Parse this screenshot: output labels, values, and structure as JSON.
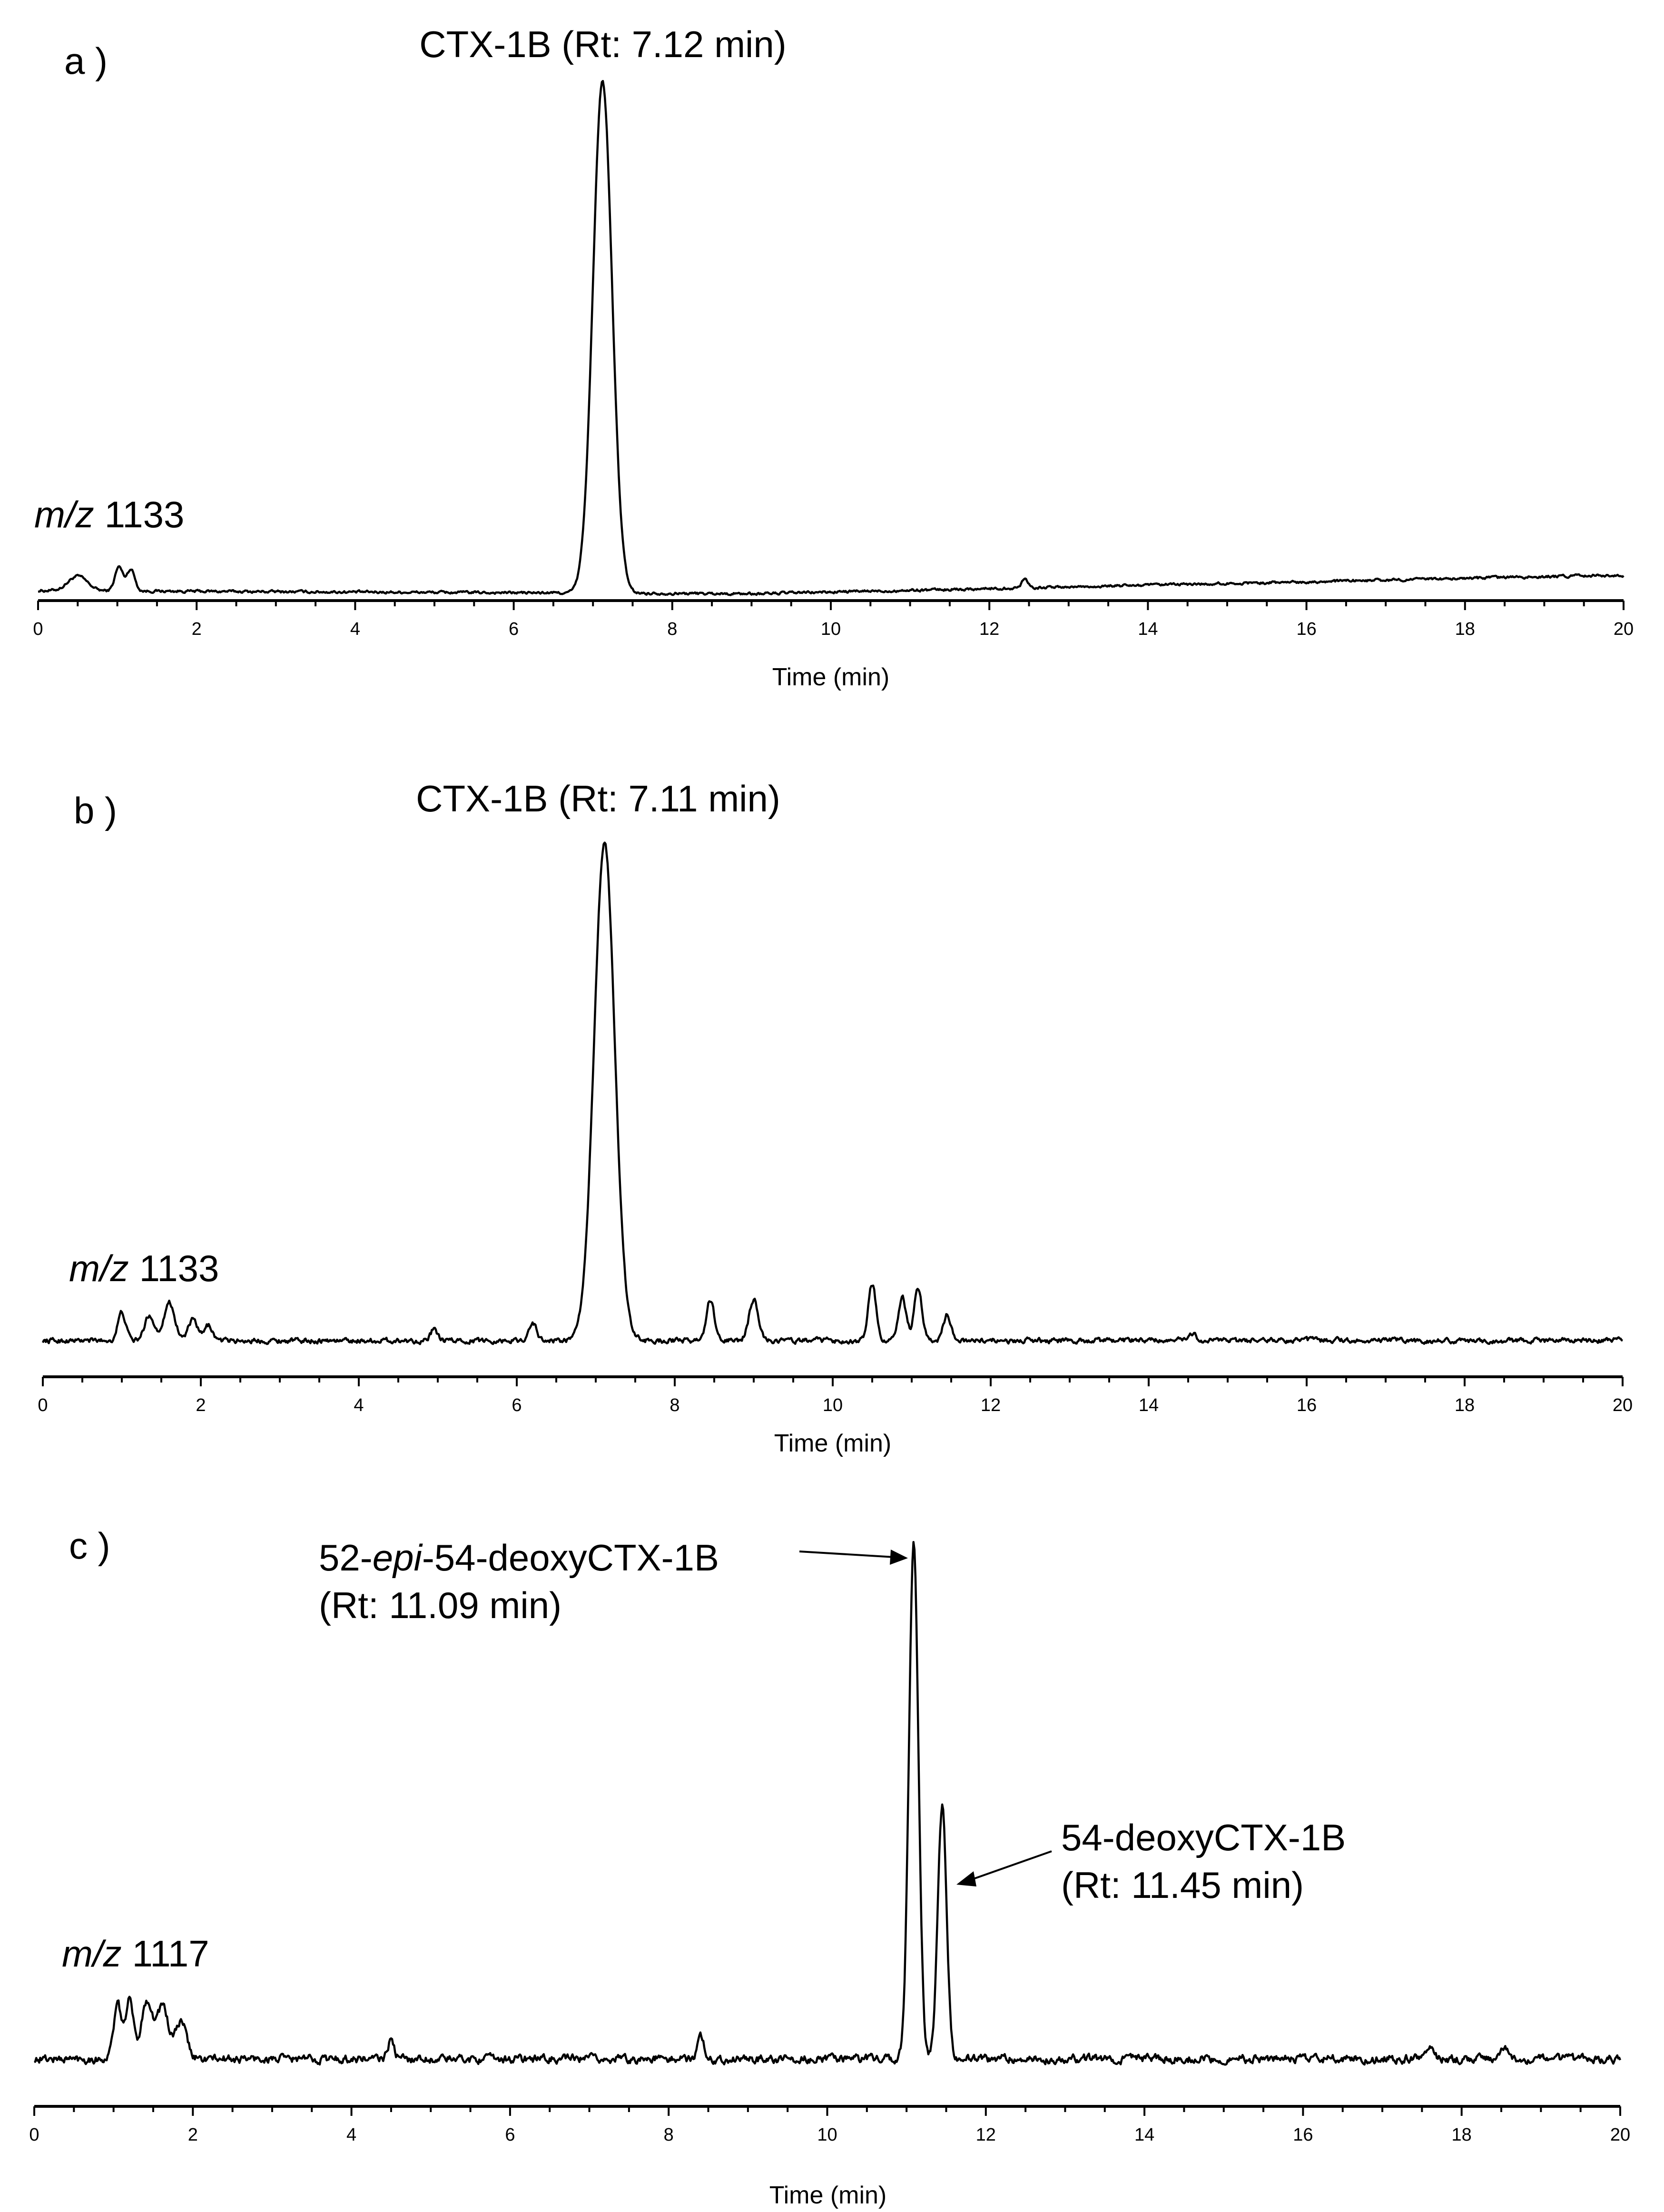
{
  "chart_data": [
    {
      "type": "line",
      "panel_label": "a )",
      "ion_label_prefix": "m/z",
      "ion_label_value": "1133",
      "xlabel": "Time (min)",
      "xlim": [
        0,
        20
      ],
      "x_ticks": [
        0,
        2,
        4,
        6,
        8,
        10,
        12,
        14,
        16,
        18,
        20
      ],
      "ylim": [
        0,
        100
      ],
      "peaks": [
        {
          "x": 0.5,
          "y": 2.8,
          "w": 0.12
        },
        {
          "x": 1.02,
          "y": 4.6,
          "w": 0.05
        },
        {
          "x": 1.17,
          "y": 4.2,
          "w": 0.05
        },
        {
          "x": 7.12,
          "y": 98,
          "w": 0.12
        },
        {
          "x": 12.45,
          "y": 1.8,
          "w": 0.04
        }
      ],
      "baseline": {
        "start": 1.0,
        "mid_x": 9.0,
        "mid_y": 0.4,
        "end": 4.0,
        "noise": 0.45
      },
      "annotations": [
        {
          "lines": [
            "CTX-1B (Rt: 7.12 min)"
          ],
          "peak_x": 7.12,
          "arrow": false
        }
      ]
    },
    {
      "type": "line",
      "panel_label": "b )",
      "ion_label_prefix": "m/z",
      "ion_label_value": "1133",
      "xlabel": "Time (min)",
      "xlim": [
        0,
        20
      ],
      "x_ticks": [
        0,
        2,
        4,
        6,
        8,
        10,
        12,
        14,
        16,
        18,
        20
      ],
      "ylim": [
        0,
        100
      ],
      "peaks": [
        {
          "x": 1.0,
          "y": 5.5,
          "w": 0.05
        },
        {
          "x": 1.35,
          "y": 5.0,
          "w": 0.06
        },
        {
          "x": 1.6,
          "y": 7.5,
          "w": 0.07
        },
        {
          "x": 1.9,
          "y": 4.0,
          "w": 0.06
        },
        {
          "x": 2.1,
          "y": 3.0,
          "w": 0.05
        },
        {
          "x": 4.95,
          "y": 2.2,
          "w": 0.04
        },
        {
          "x": 6.2,
          "y": 3.5,
          "w": 0.05
        },
        {
          "x": 7.11,
          "y": 98,
          "w": 0.13
        },
        {
          "x": 8.45,
          "y": 8.0,
          "w": 0.05
        },
        {
          "x": 9.0,
          "y": 8.0,
          "w": 0.06
        },
        {
          "x": 10.5,
          "y": 11.0,
          "w": 0.05
        },
        {
          "x": 10.88,
          "y": 8.5,
          "w": 0.05
        },
        {
          "x": 11.08,
          "y": 10.0,
          "w": 0.05
        },
        {
          "x": 11.45,
          "y": 5.0,
          "w": 0.05
        },
        {
          "x": 14.55,
          "y": 1.5,
          "w": 0.04
        }
      ],
      "baseline": {
        "start": 1.5,
        "mid_x": 10.0,
        "mid_y": 1.5,
        "end": 1.5,
        "noise": 0.9
      },
      "annotations": [
        {
          "lines": [
            "CTX-1B (Rt: 7.11 min)"
          ],
          "peak_x": 7.11,
          "arrow": false
        }
      ]
    },
    {
      "type": "line",
      "panel_label": "c )",
      "ion_label_prefix": "m/z",
      "ion_label_value": "1117",
      "xlabel": "Time (min)",
      "xlim": [
        0,
        20
      ],
      "x_ticks": [
        0,
        2,
        4,
        6,
        8,
        10,
        12,
        14,
        16,
        18,
        20
      ],
      "ylim": [
        0,
        100
      ],
      "peaks": [
        {
          "x": 1.05,
          "y": 10,
          "w": 0.05
        },
        {
          "x": 1.2,
          "y": 11,
          "w": 0.05
        },
        {
          "x": 1.42,
          "y": 11,
          "w": 0.07
        },
        {
          "x": 1.62,
          "y": 10,
          "w": 0.07
        },
        {
          "x": 1.85,
          "y": 7,
          "w": 0.07
        },
        {
          "x": 4.5,
          "y": 3.5,
          "w": 0.04
        },
        {
          "x": 8.4,
          "y": 4.5,
          "w": 0.04
        },
        {
          "x": 11.09,
          "y": 97,
          "w": 0.06
        },
        {
          "x": 11.45,
          "y": 48,
          "w": 0.055
        },
        {
          "x": 17.6,
          "y": 2.5,
          "w": 0.04
        },
        {
          "x": 18.55,
          "y": 2.3,
          "w": 0.04
        }
      ],
      "baseline": {
        "start": 4.0,
        "mid_x": 10.0,
        "mid_y": 4.0,
        "end": 4.0,
        "noise": 1.4
      },
      "annotations": [
        {
          "lines": [
            "52-epi-54-deoxyCTX-1B",
            "(Rt: 11.09 min)"
          ],
          "peak_x": 11.09,
          "arrow": true
        },
        {
          "lines": [
            "54-deoxyCTX-1B",
            "(Rt: 11.45 min)"
          ],
          "peak_x": 11.45,
          "arrow": true
        }
      ]
    }
  ]
}
